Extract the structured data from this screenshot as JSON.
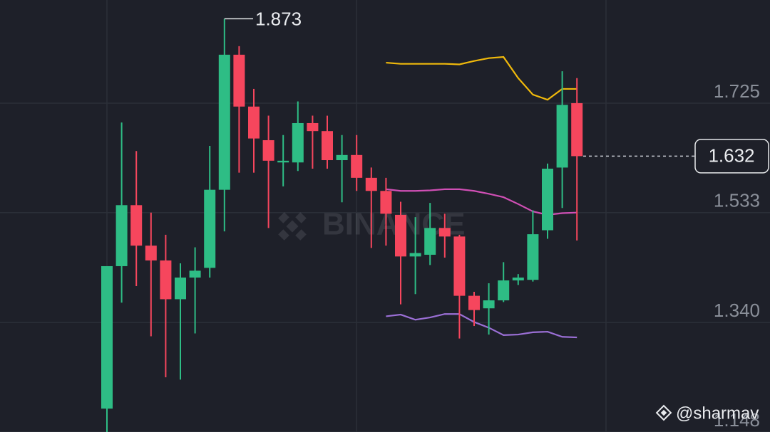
{
  "chart_data": {
    "type": "candlestick",
    "open": [
      1.189,
      1.439,
      1.546,
      1.475,
      1.449,
      1.381,
      1.419,
      1.436,
      1.573,
      1.81,
      1.719,
      1.66,
      1.621,
      1.621,
      1.69,
      1.676,
      1.625,
      1.634,
      1.594,
      1.571,
      1.529,
      1.456,
      1.459,
      1.506,
      1.491,
      1.387,
      1.365,
      1.379,
      1.414,
      1.415,
      1.502,
      1.612,
      1.725
    ],
    "high": [
      1.439,
      1.691,
      1.641,
      1.533,
      1.494,
      1.444,
      1.472,
      1.65,
      1.873,
      1.825,
      1.75,
      1.703,
      1.669,
      1.728,
      1.703,
      1.703,
      1.669,
      1.669,
      1.612,
      1.594,
      1.552,
      1.525,
      1.55,
      1.531,
      1.494,
      1.394,
      1.409,
      1.446,
      1.425,
      1.537,
      1.619,
      1.781,
      1.769
    ],
    "low": [
      1.148,
      1.375,
      1.404,
      1.316,
      1.244,
      1.24,
      1.321,
      1.419,
      1.5,
      1.603,
      1.603,
      1.506,
      1.579,
      1.606,
      1.61,
      1.61,
      1.551,
      1.571,
      1.471,
      1.475,
      1.372,
      1.39,
      1.441,
      1.454,
      1.312,
      1.334,
      1.319,
      1.376,
      1.406,
      1.412,
      1.487,
      1.541,
      1.484
    ],
    "close": [
      1.439,
      1.546,
      1.475,
      1.449,
      1.381,
      1.419,
      1.431,
      1.573,
      1.81,
      1.719,
      1.663,
      1.624,
      1.624,
      1.69,
      1.676,
      1.625,
      1.634,
      1.594,
      1.571,
      1.531,
      1.456,
      1.462,
      1.506,
      1.491,
      1.387,
      1.362,
      1.379,
      1.414,
      1.419,
      1.495,
      1.61,
      1.722,
      1.632
    ],
    "up_color": "#2ebd85",
    "down_color": "#f6465d",
    "bands": [
      {
        "color": "#f0b90b",
        "values": [
          null,
          null,
          null,
          null,
          null,
          null,
          null,
          null,
          null,
          null,
          null,
          null,
          null,
          null,
          null,
          null,
          null,
          null,
          null,
          1.796,
          1.794,
          1.794,
          1.794,
          1.794,
          1.793,
          1.799,
          1.804,
          1.806,
          1.769,
          1.74,
          1.731,
          1.75,
          1.75
        ]
      },
      {
        "color": "#d04fb5",
        "values": [
          null,
          null,
          null,
          null,
          null,
          null,
          null,
          null,
          null,
          null,
          null,
          null,
          null,
          null,
          null,
          null,
          null,
          null,
          null,
          1.574,
          1.571,
          1.571,
          1.572,
          1.574,
          1.574,
          1.571,
          1.566,
          1.56,
          1.548,
          1.535,
          1.529,
          1.532,
          1.533
        ]
      },
      {
        "color": "#9b6fd6",
        "values": [
          null,
          null,
          null,
          null,
          null,
          null,
          null,
          null,
          null,
          null,
          null,
          null,
          null,
          null,
          null,
          null,
          null,
          null,
          null,
          1.351,
          1.354,
          1.345,
          1.349,
          1.355,
          1.355,
          1.341,
          1.331,
          1.318,
          1.319,
          1.323,
          1.324,
          1.315,
          1.314
        ]
      }
    ],
    "ylim": [
      1.148,
      1.906
    ],
    "yticks": [
      1.148,
      {
        "value": 1.34,
        "label": "1.340"
      },
      1.533,
      1.725
    ],
    "grid": true,
    "max_label": 1.873,
    "last_price": 1.632,
    "watermark": "BINANCE",
    "credit": "@sharmav"
  }
}
